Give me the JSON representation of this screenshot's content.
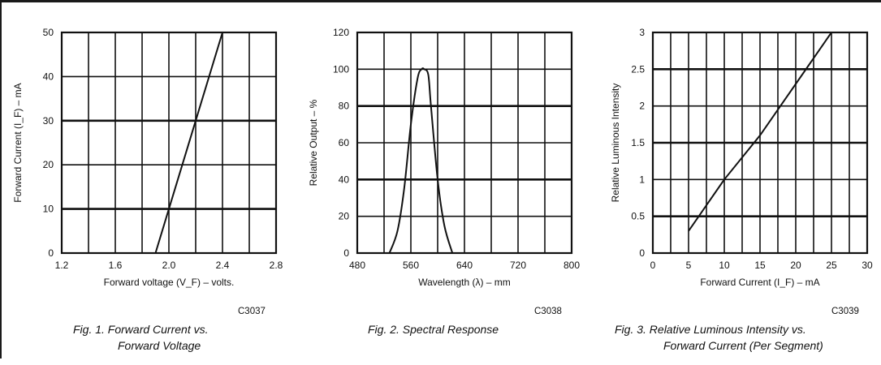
{
  "chart_data": [
    {
      "type": "line",
      "xlabel": "Forward voltage (V_F) – volts.",
      "ylabel": "Forward Current (I_F) – mA",
      "x_ticks": [
        "1.2",
        "1.6",
        "2.0",
        "2.4",
        "2.8"
      ],
      "y_ticks": [
        "0",
        "10",
        "20",
        "30",
        "40",
        "50"
      ],
      "xlim": [
        1.2,
        2.8
      ],
      "ylim": [
        0,
        50
      ],
      "grid": true,
      "series": [
        {
          "x": [
            1.9,
            2.0,
            2.2,
            2.4
          ],
          "y": [
            0,
            10,
            30,
            50
          ]
        }
      ],
      "code": "C3037",
      "caption": [
        "Fig. 1.  Forward Current vs.",
        "Forward Voltage"
      ]
    },
    {
      "type": "line",
      "xlabel": "Wavelength (λ) – mm",
      "ylabel": "Relative Output – %",
      "x_ticks": [
        "480",
        "560",
        "640",
        "720",
        "800"
      ],
      "y_ticks": [
        "0",
        "20",
        "40",
        "60",
        "80",
        "100",
        "120"
      ],
      "xlim": [
        480,
        800
      ],
      "ylim": [
        0,
        120
      ],
      "grid": true,
      "series": [
        {
          "x": [
            528,
            540,
            550,
            560,
            570,
            576,
            580,
            586,
            590,
            600,
            610,
            622
          ],
          "y": [
            0,
            12,
            35,
            70,
            95,
            100,
            100,
            97,
            80,
            40,
            15,
            0
          ]
        }
      ],
      "code": "C3038",
      "caption": [
        "Fig. 2.  Spectral Response"
      ]
    },
    {
      "type": "line",
      "xlabel": "Forward Current (I_F) – mA",
      "ylabel": "Relative Luminous Intensity",
      "x_ticks": [
        "0",
        "5",
        "10",
        "15",
        "20",
        "25",
        "30"
      ],
      "y_ticks": [
        "0",
        "0.5",
        "1",
        "1.5",
        "2",
        "2.5",
        "3"
      ],
      "xlim": [
        0,
        30
      ],
      "ylim": [
        0,
        3
      ],
      "grid": true,
      "series": [
        {
          "x": [
            5,
            10,
            15,
            20,
            25
          ],
          "y": [
            0.3,
            1.0,
            1.6,
            2.3,
            3.0
          ]
        }
      ],
      "code": "C3039",
      "caption": [
        "Fig. 3.  Relative Luminous Intensity vs.",
        "Forward Current (Per Segment)"
      ]
    }
  ]
}
